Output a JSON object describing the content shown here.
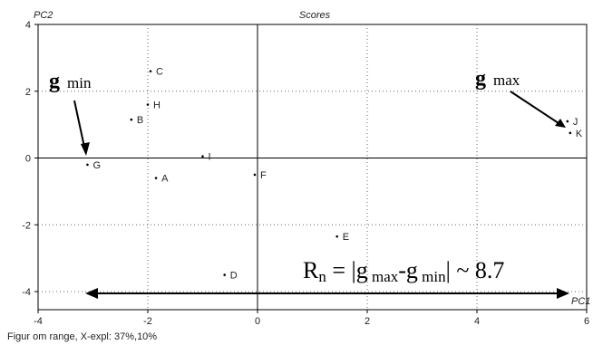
{
  "chart_data": {
    "type": "scatter",
    "title": "Scores",
    "xlabel": "PC1",
    "ylabel": "PC2",
    "xlim": [
      -4,
      6
    ],
    "ylim": [
      -4,
      4
    ],
    "x_ticks": [
      -4,
      -2,
      0,
      2,
      4,
      6
    ],
    "y_ticks": [
      -4,
      -2,
      0,
      2,
      4
    ],
    "grid": true,
    "points": [
      {
        "label": "C",
        "x": -1.95,
        "y": 2.6
      },
      {
        "label": "H",
        "x": -2.0,
        "y": 1.6
      },
      {
        "label": "B",
        "x": -2.3,
        "y": 1.15
      },
      {
        "label": "I",
        "x": -1.0,
        "y": 0.05
      },
      {
        "label": "G",
        "x": -3.1,
        "y": -0.2
      },
      {
        "label": "A",
        "x": -1.85,
        "y": -0.6
      },
      {
        "label": "F",
        "x": -0.05,
        "y": -0.5
      },
      {
        "label": "E",
        "x": 1.45,
        "y": -2.35
      },
      {
        "label": "D",
        "x": -0.6,
        "y": -3.5
      },
      {
        "label": "J",
        "x": 5.65,
        "y": 1.1
      },
      {
        "label": "K",
        "x": 5.7,
        "y": 0.75
      }
    ],
    "annotations": {
      "g_min": {
        "main": "g",
        "sub": "min"
      },
      "g_max": {
        "main": "g",
        "sub": "max"
      },
      "range_formula": {
        "r": "R",
        "r_sub": "n",
        "eq": " = |g",
        "sub1": " max",
        "dash": "-g",
        "sub2": " min",
        "tail": "| ~ 8.7"
      }
    }
  },
  "footer": "Figur om range, X-expl: 37%,10%"
}
